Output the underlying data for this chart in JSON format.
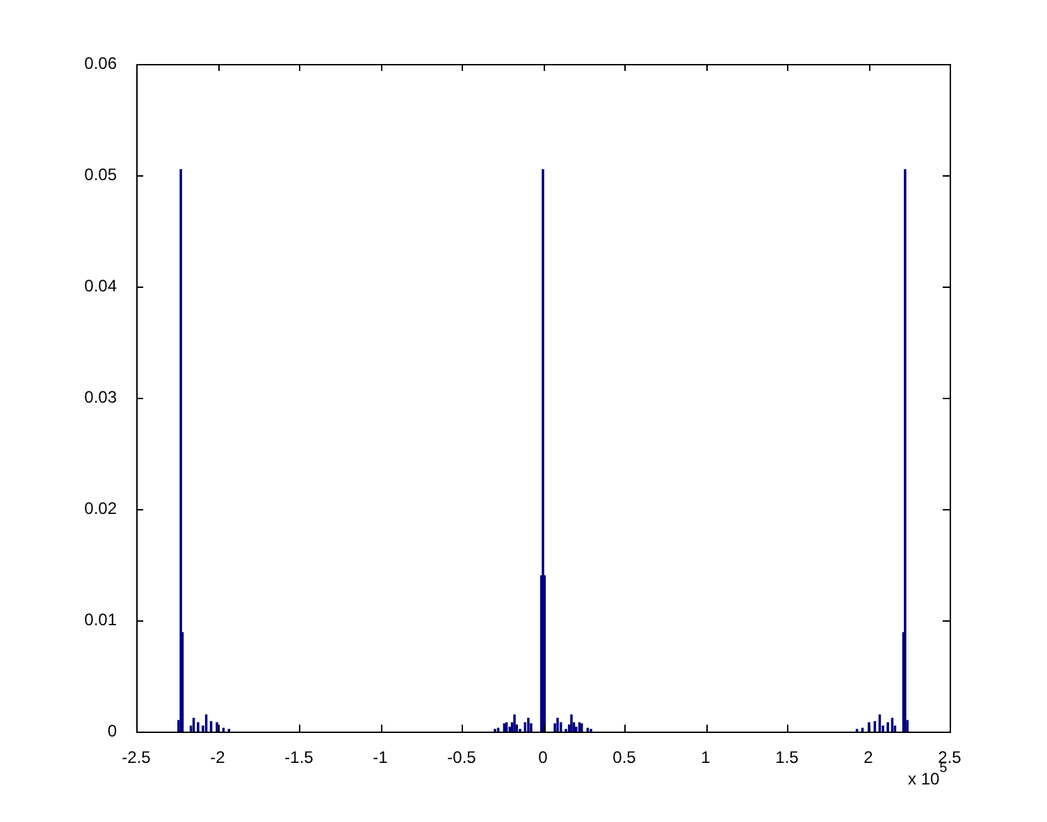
{
  "chart_data": {
    "type": "bar",
    "color": "#000080",
    "x": [
      -2.24,
      -2.226,
      -2.216,
      -2.164,
      -2.147,
      -2.12,
      -2.09,
      -2.07,
      -2.04,
      -2.004,
      -1.964,
      -1.93,
      -0.295,
      -0.275,
      -0.238,
      -0.224,
      -0.204,
      -0.19,
      -0.175,
      -0.161,
      -0.141,
      -0.11,
      -0.09,
      -0.073,
      -0.01,
      0,
      0.01,
      0.073,
      0.09,
      0.11,
      0.141,
      0.161,
      0.175,
      0.19,
      0.204,
      0.224,
      0.238,
      0.275,
      0.295,
      1.93,
      1.964,
      2.004,
      2.04,
      2.07,
      2.09,
      2.12,
      2.147,
      2.164,
      2.216,
      2.226,
      2.24
    ],
    "values": [
      0.001,
      0.0505,
      0.0089,
      0.0005,
      0.0012,
      0.0008,
      0.0005,
      0.0015,
      0.0009,
      0.0008,
      0.0003,
      0.0002,
      0.0002,
      0.0003,
      0.0007,
      0.0008,
      0.0004,
      0.0008,
      0.0015,
      0.0006,
      0.0002,
      0.0008,
      0.0012,
      0.0007,
      0.014,
      0.0505,
      0.014,
      0.0007,
      0.0012,
      0.0008,
      0.0002,
      0.0006,
      0.0015,
      0.0008,
      0.0004,
      0.0008,
      0.0007,
      0.0003,
      0.0002,
      0.0002,
      0.0003,
      0.0008,
      0.0009,
      0.0015,
      0.0005,
      0.0008,
      0.0012,
      0.0005,
      0.0089,
      0.0505,
      0.001
    ],
    "xlim": [
      -2.5,
      2.5
    ],
    "xticks": [
      -2.5,
      -2,
      -1.5,
      -1,
      -0.5,
      0,
      0.5,
      1,
      1.5,
      2,
      2.5
    ],
    "ylim": [
      0,
      0.06
    ],
    "yticks": [
      0,
      0.01,
      0.02,
      0.03,
      0.04,
      0.05,
      0.06
    ],
    "grid": false,
    "legend": false,
    "annotations": [
      "x 10$^{5}$"
    ]
  }
}
